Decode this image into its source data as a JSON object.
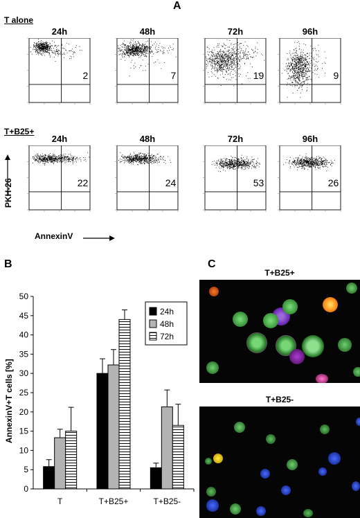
{
  "panel_labels": {
    "a": "A",
    "b": "B",
    "c": "C"
  },
  "panel_a": {
    "row1_label": "T alone",
    "row2_label": "T+B25+",
    "y_axis_label": "PKH-26",
    "x_axis_label": "AnnexinV",
    "times": [
      "24h",
      "48h",
      "72h",
      "96h"
    ],
    "row1_values": [
      "2",
      "7",
      "19",
      "9"
    ],
    "row2_values": [
      "22",
      "24",
      "53",
      "26"
    ]
  },
  "panel_c": {
    "title_top": "T+B25+",
    "title_bottom": "T+B25-"
  },
  "chart_data": {
    "type": "bar",
    "title": "",
    "xlabel": "",
    "ylabel": "AnnexinV+T cells [%]",
    "categories": [
      "T",
      "T+B25+",
      "T+B25-"
    ],
    "ylim": [
      0,
      50
    ],
    "yticks": [
      0,
      5,
      10,
      15,
      20,
      25,
      30,
      35,
      40,
      45,
      50
    ],
    "legend_position": "top-right",
    "grid": false,
    "series": [
      {
        "name": "24h",
        "values": [
          5.8,
          30.0,
          5.5
        ],
        "errors": [
          1.8,
          3.8,
          1.2
        ],
        "color": "#000000",
        "fill": "solid"
      },
      {
        "name": "48h",
        "values": [
          13.3,
          32.2,
          21.3
        ],
        "errors": [
          2.2,
          4.0,
          4.4
        ],
        "color": "#b3b3b3",
        "fill": "solid"
      },
      {
        "name": "72h",
        "values": [
          15.0,
          44.0,
          16.5
        ],
        "errors": [
          6.2,
          2.5,
          5.5
        ],
        "color": "#ffffff",
        "fill": "horizontal-stripes"
      }
    ]
  }
}
